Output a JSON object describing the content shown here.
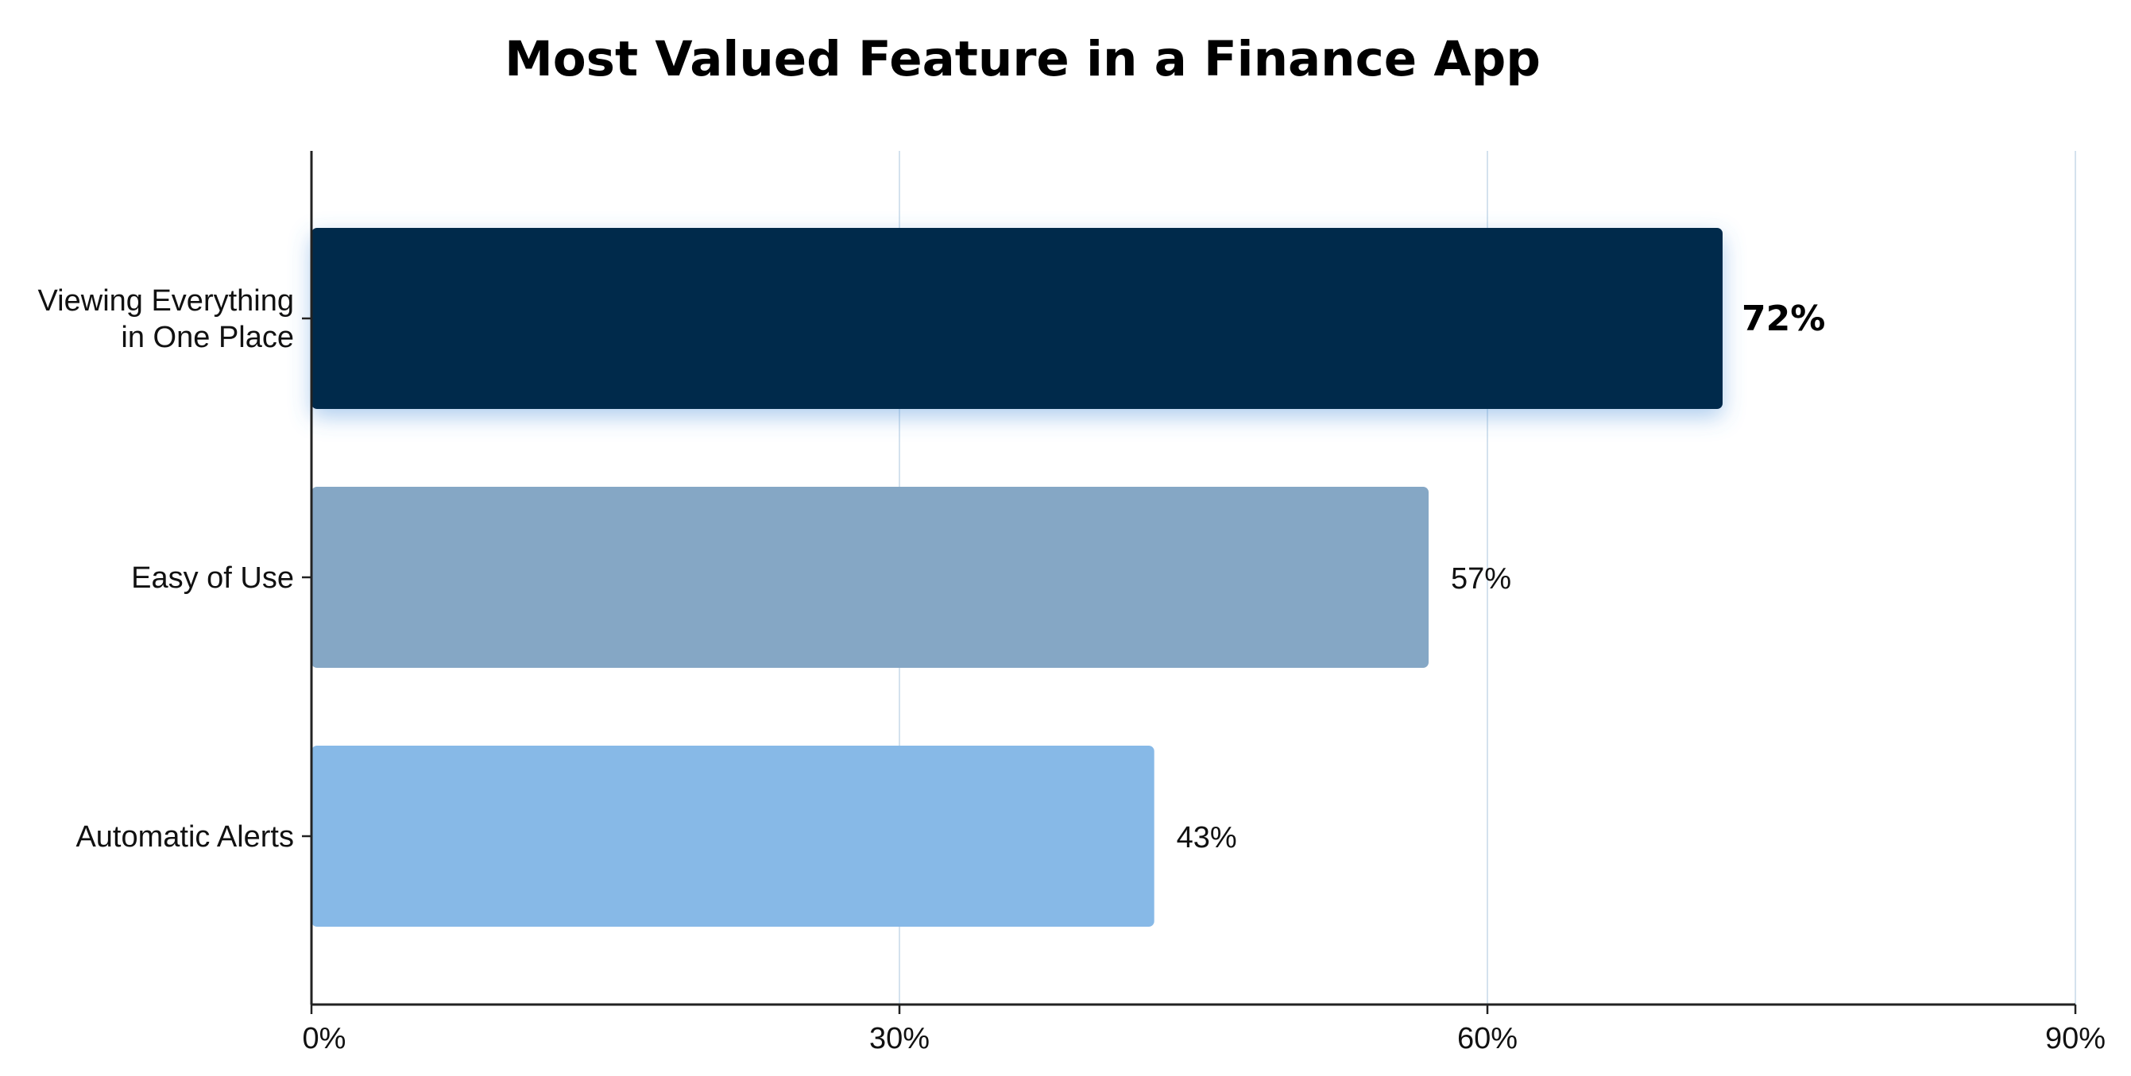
{
  "chart_data": {
    "type": "bar",
    "orientation": "horizontal",
    "title": "Most Valued Feature in a Finance App",
    "xlabel": "",
    "ylabel": "",
    "categories": [
      [
        "Viewing Everything",
        "in One Place"
      ],
      [
        "Easy of Use"
      ],
      [
        "Automatic Alerts"
      ]
    ],
    "values": [
      72,
      57,
      43
    ],
    "value_labels": [
      "72%",
      "57%",
      "43%"
    ],
    "highlighted_index": 0,
    "bar_colors": [
      "#052a4b",
      "#85a7c5",
      "#87b9e7"
    ],
    "xlim": [
      0,
      90
    ],
    "xticks": [
      0,
      30,
      60,
      90
    ],
    "xtick_labels": [
      "0%",
      "30%",
      "60%",
      "90%"
    ],
    "grid": true,
    "grid_color": "#d4e2ee",
    "axis_color": "#222222",
    "legend": "none"
  }
}
